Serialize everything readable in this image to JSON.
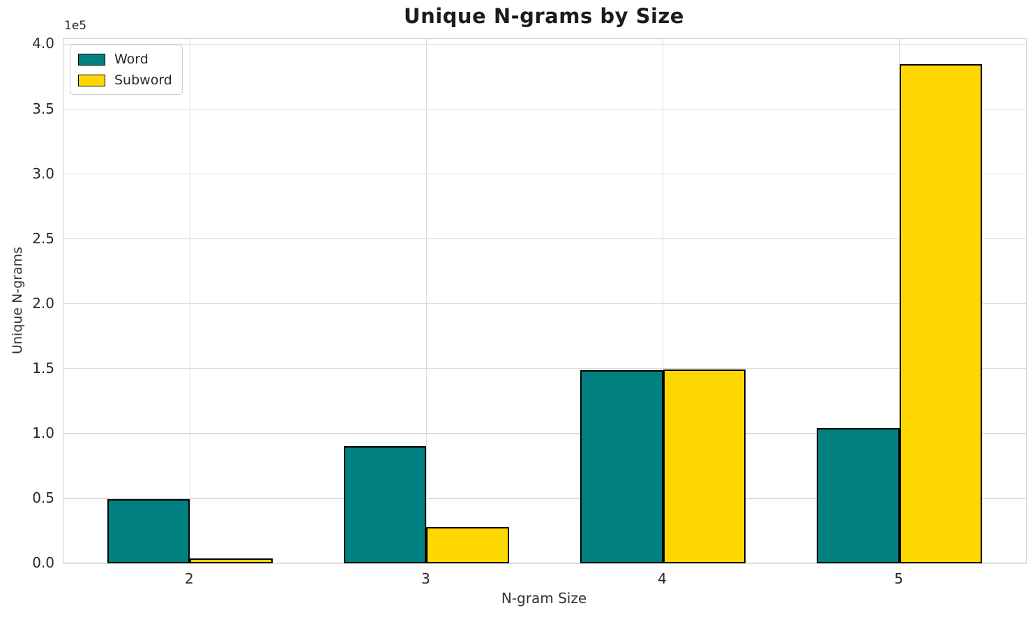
{
  "title": "Unique N-grams by Size",
  "chart_data": {
    "type": "bar",
    "title": "Unique N-grams by Size",
    "xlabel": "N-gram Size",
    "ylabel": "Unique N-grams",
    "offset_text": "1e5",
    "categories": [
      "2",
      "3",
      "4",
      "5"
    ],
    "series": [
      {
        "name": "Word",
        "color": "#008080",
        "values": [
          49500,
          90500,
          148600,
          104000
        ]
      },
      {
        "name": "Subword",
        "color": "#FFD700",
        "values": [
          4000,
          27700,
          149100,
          384700
        ]
      }
    ],
    "bar_edge_color": "#000000",
    "bar_width_fraction": 0.35,
    "ylim": [
      0,
      404000
    ],
    "yticks": [
      0,
      50000,
      100000,
      150000,
      200000,
      250000,
      300000,
      350000,
      400000
    ],
    "ytick_labels": [
      "0.0",
      "0.5",
      "1.0",
      "1.5",
      "2.0",
      "2.5",
      "3.0",
      "3.5",
      "4.0"
    ],
    "grid": true,
    "legend_position": "upper left"
  },
  "colors": {
    "grid": "#dcdcdc",
    "spine": "#cccccc",
    "text": "#262626",
    "title": "#1c1c1c",
    "background": "#ffffff"
  }
}
